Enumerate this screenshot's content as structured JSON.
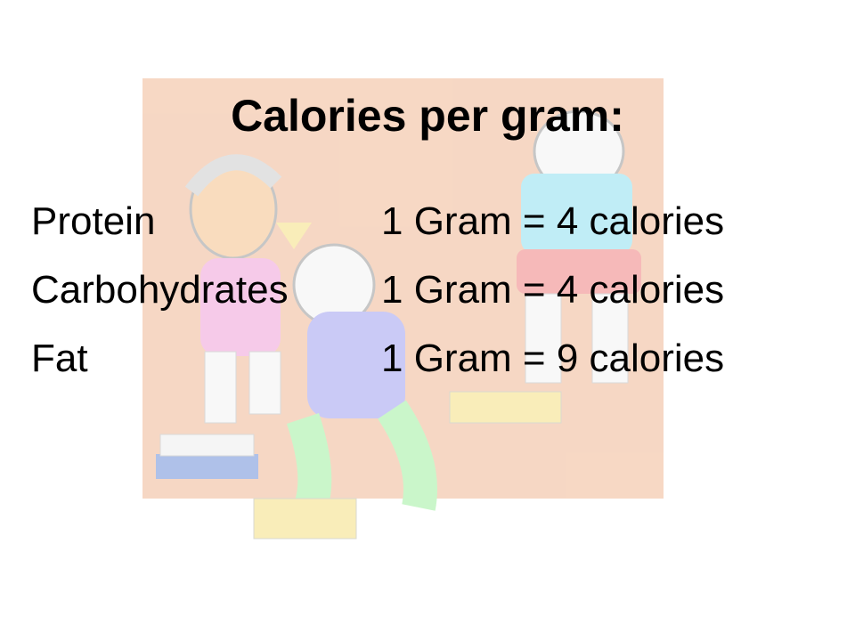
{
  "title": "Calories per gram:",
  "rows": [
    [
      "Protein",
      "1 Gram = 4 calories"
    ],
    [
      "Carbohydrates",
      "1 Gram = 4 calories"
    ],
    [
      "Fat",
      "1 Gram = 9 calories"
    ]
  ]
}
